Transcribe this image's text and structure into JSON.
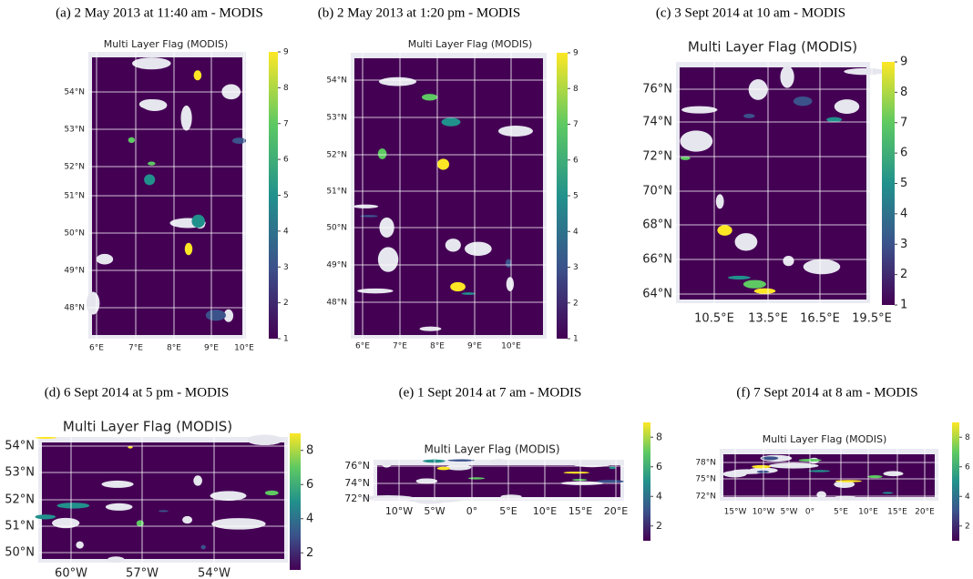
{
  "panels": [
    {
      "caption": "(a) 2 May 2013 at 11:40 am - MODIS",
      "title": "Multi Layer Flag (MODIS)",
      "yticks": [
        "54°N",
        "53°N",
        "52°N",
        "51°N",
        "50°N",
        "49°N",
        "48°N"
      ],
      "xticks": [
        "6°E",
        "7°E",
        "8°E",
        "9°E",
        "10°E"
      ],
      "colorbar": {
        "lim": [
          1,
          9
        ],
        "ticks": [
          1,
          2,
          3,
          4,
          5,
          6,
          7,
          8,
          9
        ]
      }
    },
    {
      "caption": "(b) 2 May 2013 at 1:20 pm - MODIS",
      "title": "Multi Layer Flag (MODIS)",
      "yticks": [
        "54°N",
        "53°N",
        "52°N",
        "51°N",
        "50°N",
        "49°N",
        "48°N"
      ],
      "xticks": [
        "6°E",
        "7°E",
        "8°E",
        "9°E",
        "10°E"
      ],
      "colorbar": {
        "lim": [
          1,
          9
        ],
        "ticks": [
          1,
          2,
          3,
          4,
          5,
          6,
          7,
          8,
          9
        ]
      }
    },
    {
      "caption": "(c) 3 Sept 2014 at 10 am - MODIS",
      "title": "Multi Layer Flag (MODIS)",
      "yticks": [
        "76°N",
        "74°N",
        "72°N",
        "70°N",
        "68°N",
        "66°N",
        "64°N"
      ],
      "xticks": [
        "10.5°E",
        "13.5°E",
        "16.5°E",
        "19.5°E"
      ],
      "colorbar": {
        "lim": [
          1,
          9
        ],
        "ticks": [
          1,
          2,
          3,
          4,
          5,
          6,
          7,
          8,
          9
        ]
      }
    },
    {
      "caption": "(d) 6 Sept 2014 at 5 pm - MODIS",
      "title": "Multi Layer Flag (MODIS)",
      "yticks": [
        "54°N",
        "53°N",
        "52°N",
        "51°N",
        "50°N"
      ],
      "xticks": [
        "60°W",
        "57°W",
        "54°W"
      ],
      "colorbar": {
        "lim": [
          1,
          9
        ],
        "ticks": [
          2,
          4,
          6,
          8
        ]
      }
    },
    {
      "caption": "(e) 1 Sept 2014 at 7 am - MODIS",
      "title": "Multi Layer Flag (MODIS)",
      "yticks": [
        "76°N",
        "74°N",
        "72°N"
      ],
      "xticks": [
        "10°W",
        "5°W",
        "0°",
        "5°E",
        "10°E",
        "15°E",
        "20°E"
      ],
      "colorbar": {
        "lim": [
          1,
          9
        ],
        "ticks": [
          2,
          4,
          6,
          8
        ]
      }
    },
    {
      "caption": "(f) 7 Sept 2014 at 8 am - MODIS",
      "title": "Multi Layer Flag (MODIS)",
      "yticks": [
        "78°N",
        "75°N",
        "72°N"
      ],
      "xticks": [
        "15°W",
        "10°W",
        "5°W",
        "0°",
        "5°E",
        "10°E",
        "15°E",
        "20°E"
      ],
      "colorbar": {
        "lim": [
          1,
          9
        ],
        "ticks": [
          2,
          4,
          6,
          8
        ]
      }
    }
  ]
}
